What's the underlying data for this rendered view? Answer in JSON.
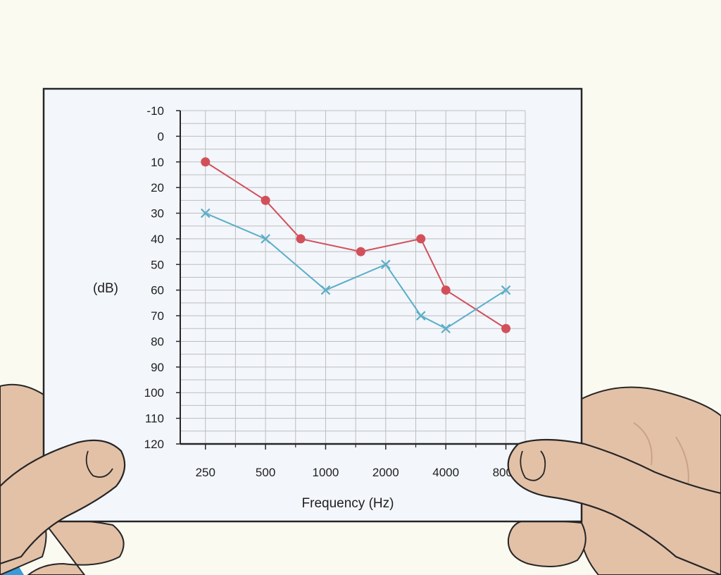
{
  "chart_data": {
    "type": "line",
    "title": "",
    "xlabel": "Frequency (Hz)",
    "ylabel": "(dB)",
    "x_tick_labels": [
      "250",
      "500",
      "1000",
      "2000",
      "4000",
      "8000"
    ],
    "y_tick_labels": [
      "-10",
      "0",
      "10",
      "20",
      "30",
      "40",
      "50",
      "60",
      "70",
      "80",
      "90",
      "100",
      "110",
      "120"
    ],
    "ylim": [
      -10,
      120
    ],
    "y_inverted": true,
    "x_scale": "log2",
    "xlim": [
      187,
      10000
    ],
    "grid": true,
    "series": [
      {
        "marker": "circle",
        "color": "#d2505a",
        "points": [
          {
            "x": 250,
            "y": 10
          },
          {
            "x": 500,
            "y": 25
          },
          {
            "x": 750,
            "y": 40
          },
          {
            "x": 1500,
            "y": 45
          },
          {
            "x": 3000,
            "y": 40
          },
          {
            "x": 4000,
            "y": 60
          },
          {
            "x": 8000,
            "y": 75
          }
        ]
      },
      {
        "marker": "x",
        "color": "#5aaec8",
        "points": [
          {
            "x": 250,
            "y": 30
          },
          {
            "x": 500,
            "y": 40
          },
          {
            "x": 1000,
            "y": 60
          },
          {
            "x": 2000,
            "y": 50
          },
          {
            "x": 3000,
            "y": 70
          },
          {
            "x": 4000,
            "y": 75
          },
          {
            "x": 8000,
            "y": 60
          }
        ]
      }
    ]
  },
  "colors": {
    "background": "#fbfaf1",
    "card": "#f3f6fb",
    "grid": "#bdbdbd",
    "skin": "#e3c1a7",
    "skin_shadow": "#c9a28a",
    "outline": "#262626"
  }
}
